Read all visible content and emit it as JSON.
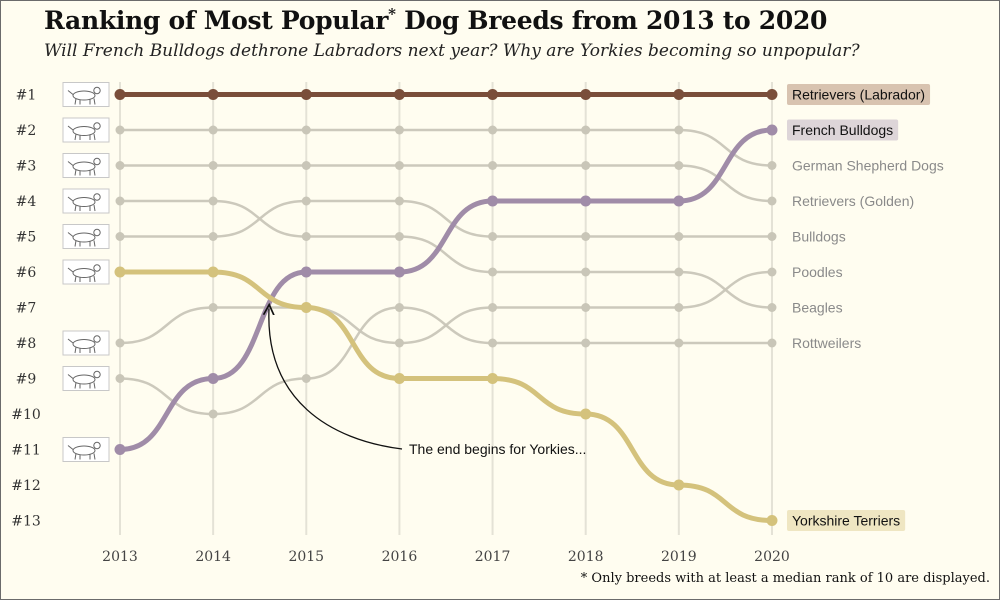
{
  "header": {
    "title_main": "Ranking of Most Popular",
    "title_star": "*",
    "title_rest": " Dog Breeds from 2013  to 2020",
    "subtitle": "Will French Bulldogs dethrone Labradors next year? Why are Yorkies becoming so unpopular?",
    "footnote": "* Only breeds with at least a median rank of 10 are displayed."
  },
  "chart_data": {
    "type": "line",
    "x": [
      2013,
      2014,
      2015,
      2016,
      2017,
      2018,
      2019,
      2020
    ],
    "rank_labels": [
      "#1",
      "#2",
      "#3",
      "#4",
      "#5",
      "#6",
      "#7",
      "#8",
      "#9",
      "#10",
      "#11",
      "#12",
      "#13"
    ],
    "y_range": [
      1,
      13
    ],
    "y_inverted": true,
    "grid": "vertical",
    "series": [
      {
        "name": "Retrievers (Labrador)",
        "ranks": [
          1,
          1,
          1,
          1,
          1,
          1,
          1,
          1
        ],
        "color": "#7a4e3a",
        "highlight": true,
        "label_bg": "#d8c3b0",
        "icon": "labrador-icon"
      },
      {
        "name": "French Bulldogs",
        "ranks": [
          11,
          9,
          6,
          6,
          4,
          4,
          4,
          2
        ],
        "color": "#a08ca8",
        "highlight": true,
        "label_bg": "#ddd5d8",
        "icon": "french-bulldog-icon"
      },
      {
        "name": "German Shepherd Dogs",
        "ranks": [
          2,
          2,
          2,
          2,
          2,
          2,
          2,
          3
        ],
        "color": "#c9c6b8",
        "highlight": false,
        "icon": "german-shepherd-icon"
      },
      {
        "name": "Retrievers (Golden)",
        "ranks": [
          3,
          3,
          3,
          3,
          3,
          3,
          3,
          4
        ],
        "color": "#c9c6b8",
        "highlight": false,
        "icon": "golden-retriever-icon"
      },
      {
        "name": "Bulldogs",
        "ranks": [
          5,
          5,
          4,
          4,
          5,
          5,
          5,
          5
        ],
        "color": "#c9c6b8",
        "highlight": false,
        "icon": "bulldog-icon"
      },
      {
        "name": "Poodles",
        "ranks": [
          8,
          7,
          7,
          8,
          7,
          7,
          7,
          6
        ],
        "color": "#c9c6b8",
        "highlight": false,
        "icon": "poodle-icon"
      },
      {
        "name": "Beagles",
        "ranks": [
          4,
          4,
          5,
          5,
          6,
          6,
          6,
          7
        ],
        "color": "#c9c6b8",
        "highlight": false,
        "icon": "beagle-icon"
      },
      {
        "name": "Rottweilers",
        "ranks": [
          9,
          10,
          9,
          7,
          8,
          8,
          8,
          8
        ],
        "color": "#c9c6b8",
        "highlight": false,
        "icon": "rottweiler-icon"
      },
      {
        "name": "Yorkshire Terriers",
        "ranks": [
          6,
          6,
          7,
          9,
          9,
          10,
          12,
          13
        ],
        "color": "#d4c27c",
        "highlight": true,
        "label_bg": "#efe6c2",
        "icon": "yorkshire-terrier-icon"
      }
    ],
    "icon_rows": [
      1,
      2,
      3,
      4,
      5,
      6,
      8,
      9,
      11
    ],
    "annotation": {
      "text": "The end begins for Yorkies...",
      "points_to": {
        "x": 2014.6,
        "rank": 7
      }
    }
  }
}
